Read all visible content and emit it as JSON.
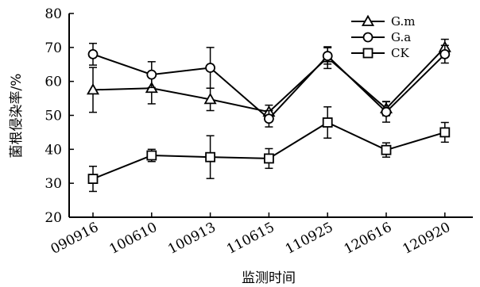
{
  "chart_data": {
    "type": "line",
    "xlabel": "监测时间",
    "ylabel": "菌根侵染率/%",
    "ylim": [
      20,
      80
    ],
    "yticks": [
      20,
      30,
      40,
      50,
      60,
      70,
      80
    ],
    "categories": [
      "090916",
      "100610",
      "100913",
      "110615",
      "110925",
      "120616",
      "120920"
    ],
    "grid": false,
    "legend_position": "top-right",
    "series": [
      {
        "name": "G.m",
        "marker": "triangle",
        "values": [
          57.5,
          58.0,
          54.7,
          51.0,
          67.0,
          52.0,
          70.0
        ],
        "errors": [
          6.6,
          4.6,
          3.3,
          2.0,
          3.2,
          2.1,
          2.4
        ]
      },
      {
        "name": "G.a",
        "marker": "circle",
        "values": [
          68.0,
          62.0,
          64.0,
          49.0,
          67.5,
          51.0,
          68.0
        ],
        "errors": [
          3.2,
          3.8,
          6.0,
          2.4,
          2.4,
          3.0,
          2.6
        ]
      },
      {
        "name": "CK",
        "marker": "square",
        "values": [
          31.3,
          38.2,
          37.7,
          37.3,
          47.9,
          39.8,
          45.0
        ],
        "errors": [
          3.7,
          1.8,
          6.3,
          2.9,
          4.6,
          2.1,
          2.9
        ]
      }
    ]
  }
}
